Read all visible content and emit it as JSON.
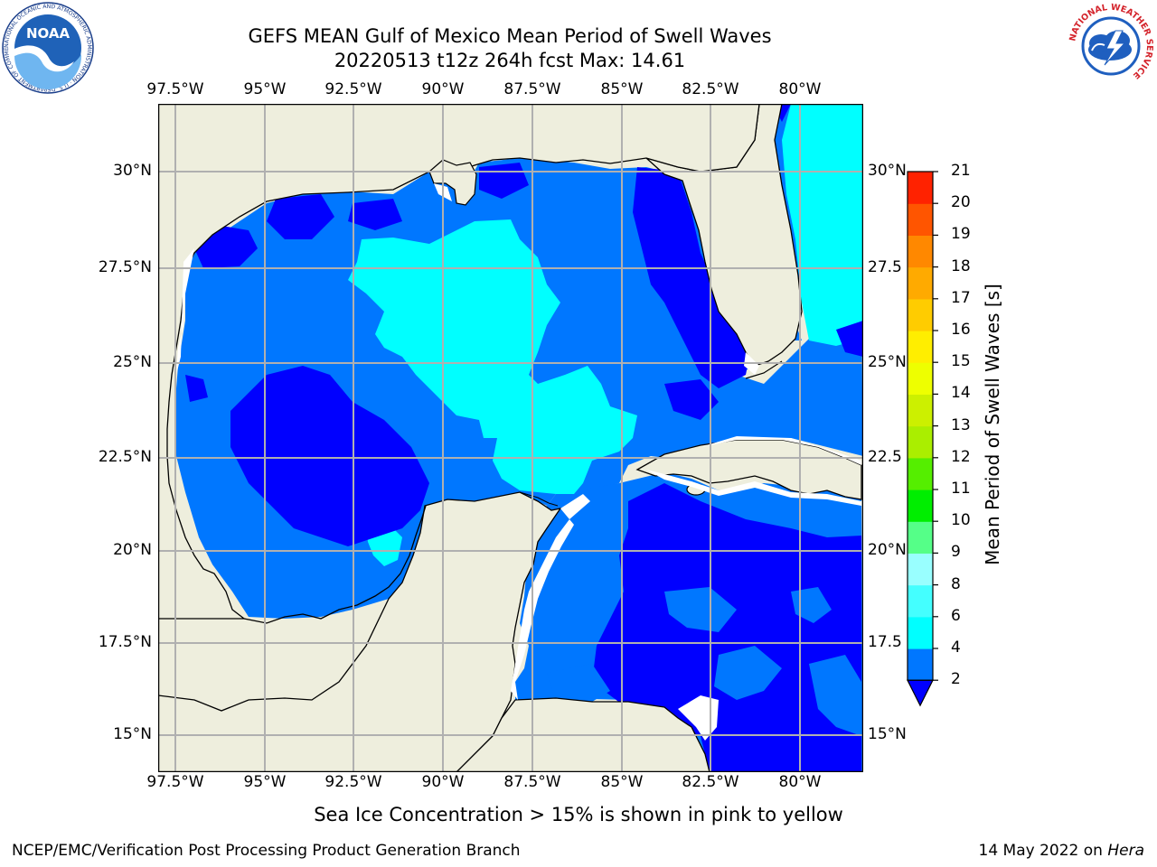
{
  "figure": {
    "title_line1": "GEFS MEAN Gulf of Mexico Mean Period of Swell Waves",
    "title_line2": "20220513 t12z 264h fcst   Max: 14.61",
    "ice_note": "Sea Ice Concentration > 15% is shown in pink to yellow",
    "footer_left": "NCEP/EMC/Verification Post Processing Product Generation Branch",
    "footer_date": "14 May 2022 on ",
    "footer_host": "Hera"
  },
  "logos": {
    "noaa_text": "NOAA",
    "noaa_ring_text": "NATIONAL OCEANIC AND ATMOSPHERIC ADMINISTRATION · U.S. DEPARTMENT OF COMMERCE",
    "nws_ring_text": "NATIONAL WEATHER SERVICE"
  },
  "map": {
    "lon_ticks": [
      "97.5°W",
      "95°W",
      "92.5°W",
      "90°W",
      "87.5°W",
      "85°W",
      "82.5°W",
      "80°W"
    ],
    "lat_ticks": [
      "30°N",
      "27.5°N",
      "25°N",
      "22.5°N",
      "20°N",
      "17.5°N",
      "15°N"
    ],
    "right_lat_ticks": [
      "30°N",
      "27.5",
      "25°N",
      "22.5",
      "20°N",
      "17.5",
      "15°N"
    ],
    "colors": {
      "land": "#eeeedd",
      "grid": "#b0b0b0",
      "ice_yellow": "#ddf500",
      "ice_green": "#ccff00"
    }
  },
  "colorbar": {
    "label": "Mean Period of Swell Waves [s]",
    "ticks": [
      "2",
      "4",
      "6",
      "8",
      "9",
      "10",
      "11",
      "12",
      "13",
      "14",
      "15",
      "16",
      "17",
      "18",
      "19",
      "20",
      "21"
    ],
    "colors": [
      "#0000ff",
      "#0077ff",
      "#00ffff",
      "#44ffff",
      "#99ffff",
      "#55ff88",
      "#00ee00",
      "#55ee00",
      "#aaee00",
      "#ccf000",
      "#eeff00",
      "#ffee00",
      "#ffcc00",
      "#ffaa00",
      "#ff8800",
      "#ff5500",
      "#ff2200",
      "#ff0000"
    ]
  }
}
